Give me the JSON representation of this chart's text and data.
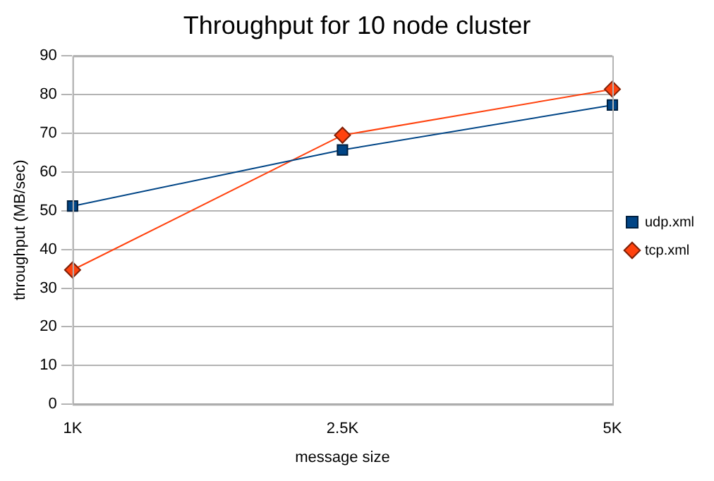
{
  "chart_data": {
    "type": "line",
    "title": "Throughput for 10 node cluster",
    "xlabel": "message size",
    "ylabel": "throughput (MB/sec)",
    "categories": [
      "1K",
      "2.5K",
      "5K"
    ],
    "series": [
      {
        "name": "udp.xml",
        "color": "#004586",
        "marker": "square",
        "values": [
          51.2,
          65.7,
          77.3
        ]
      },
      {
        "name": "tcp.xml",
        "color": "#ff420e",
        "marker": "diamond",
        "values": [
          34.7,
          69.5,
          81.4
        ]
      }
    ],
    "ylim": [
      0,
      90
    ],
    "yticks": [
      0,
      10,
      20,
      30,
      40,
      50,
      60,
      70,
      80,
      90
    ],
    "grid": "y",
    "legend": "right",
    "line_style": "solid"
  }
}
